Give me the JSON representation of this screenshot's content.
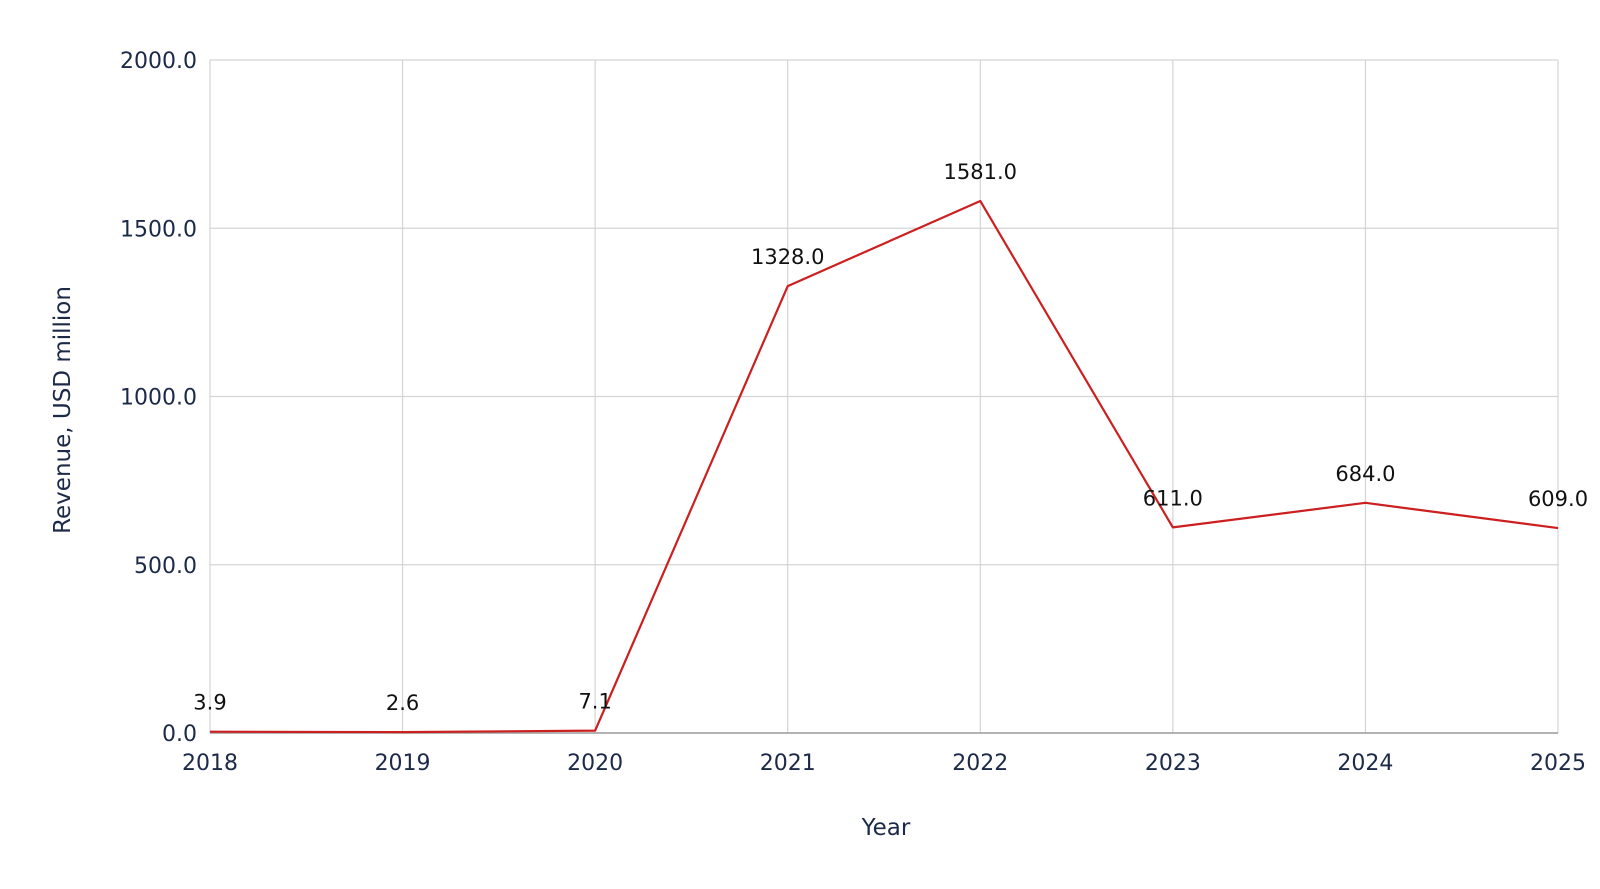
{
  "chart_data": {
    "type": "line",
    "title": "",
    "xlabel": "Year",
    "ylabel": "Revenue, USD million",
    "categories": [
      "2018",
      "2019",
      "2020",
      "2021",
      "2022",
      "2023",
      "2024",
      "2025"
    ],
    "series": [
      {
        "values": [
          3.9,
          2.6,
          7.1,
          1328.0,
          1581.0,
          611.0,
          684.0,
          609.0
        ],
        "data_labels": [
          "3.9",
          "2.6",
          "7.1",
          "1328.0",
          "1581.0",
          "611.0",
          "684.0",
          "609.0"
        ],
        "color": "#cc1f1f"
      }
    ],
    "ylim": [
      0,
      2000
    ],
    "yticks": [
      0,
      500,
      1000,
      1500,
      2000
    ],
    "ytick_labels": [
      "0.0",
      "500.0",
      "1000.0",
      "1500.0",
      "2000.0"
    ],
    "grid": true,
    "legend": "none"
  },
  "colors": {
    "grid": "#d4d4d4",
    "axis": "#9a9a9a",
    "tick_text": "#1c2a48",
    "series": "#cc1f1f"
  }
}
